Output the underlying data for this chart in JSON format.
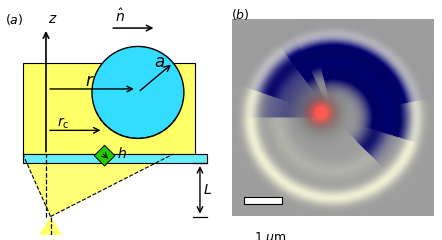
{
  "fig_width": 4.42,
  "fig_height": 2.4,
  "dpi": 100,
  "yellow": "#FFFF66",
  "cyan_circle": "#33DDFF",
  "cyan_slab": "#66EEFF",
  "green": "#22CC00",
  "bg_color": "#C8C8C8"
}
